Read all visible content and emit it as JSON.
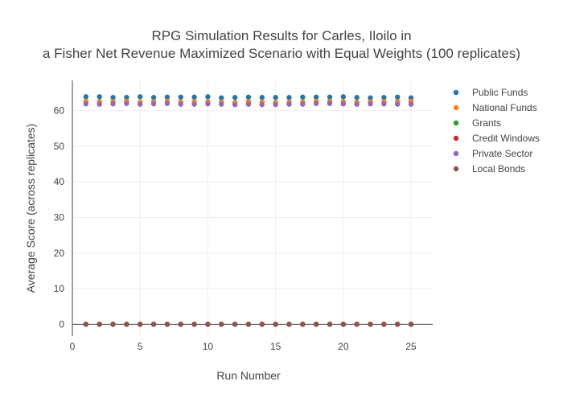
{
  "chart_data": {
    "type": "scatter",
    "title_line1": "RPG Simulation Results for Carles, Iloilo in",
    "title_line2": "a Fisher Net Revenue Maximized Scenario with Equal Weights (100 replicates)",
    "xlabel": "Run Number",
    "ylabel": "Average Score (across replicates)",
    "xlim": [
      0,
      26.6
    ],
    "ylim": [
      -3.3,
      68.5
    ],
    "x_ticks": [
      0,
      5,
      10,
      15,
      20,
      25
    ],
    "y_ticks": [
      0,
      10,
      20,
      30,
      40,
      50,
      60
    ],
    "grid": true,
    "legend_position": "top-right",
    "x": [
      1,
      2,
      3,
      4,
      5,
      6,
      7,
      8,
      9,
      10,
      11,
      12,
      13,
      14,
      15,
      16,
      17,
      18,
      19,
      20,
      21,
      22,
      23,
      24,
      25
    ],
    "series": [
      {
        "name": "Public Funds",
        "color": "#1f77b4",
        "values": [
          63.9,
          63.9,
          63.7,
          63.7,
          63.9,
          63.7,
          63.8,
          63.8,
          63.8,
          63.9,
          63.6,
          63.7,
          63.8,
          63.7,
          63.7,
          63.7,
          63.8,
          63.8,
          63.8,
          63.9,
          63.7,
          63.6,
          63.7,
          63.8,
          63.6
        ]
      },
      {
        "name": "National Funds",
        "color": "#ff7f0e",
        "values": [
          62.6,
          62.5,
          62.5,
          62.6,
          62.4,
          62.5,
          62.6,
          62.4,
          62.5,
          62.5,
          62.4,
          62.3,
          62.5,
          62.4,
          62.3,
          62.4,
          62.4,
          62.6,
          62.6,
          62.5,
          62.4,
          62.5,
          62.5,
          62.5,
          62.6
        ]
      },
      {
        "name": "Grants",
        "color": "#2ca02c",
        "values": [
          0,
          0,
          0,
          0,
          0,
          0,
          0,
          0,
          0,
          0,
          0,
          0,
          0,
          0,
          0,
          0,
          0,
          0,
          0,
          0,
          0,
          0,
          0,
          0,
          0
        ]
      },
      {
        "name": "Credit Windows",
        "color": "#d62728",
        "values": [
          0,
          0,
          0,
          0,
          0,
          0,
          0,
          0,
          0,
          0,
          0,
          0,
          0,
          0,
          0,
          0,
          0,
          0,
          0,
          0,
          0,
          0,
          0,
          0,
          0
        ]
      },
      {
        "name": "Private Sector",
        "color": "#9467bd",
        "values": [
          61.9,
          61.8,
          61.9,
          62.0,
          61.8,
          61.9,
          62.0,
          61.8,
          61.8,
          61.9,
          61.8,
          61.7,
          61.8,
          61.7,
          61.7,
          61.8,
          61.8,
          62.0,
          62.0,
          61.9,
          61.8,
          61.9,
          61.9,
          61.8,
          61.8
        ]
      },
      {
        "name": "Local Bonds",
        "color": "#8c564b",
        "values": [
          0,
          0,
          0,
          0,
          0,
          0,
          0,
          0,
          0,
          0,
          0,
          0,
          0,
          0,
          0,
          0,
          0,
          0,
          0,
          0,
          0,
          0,
          0,
          0,
          0
        ]
      }
    ]
  }
}
